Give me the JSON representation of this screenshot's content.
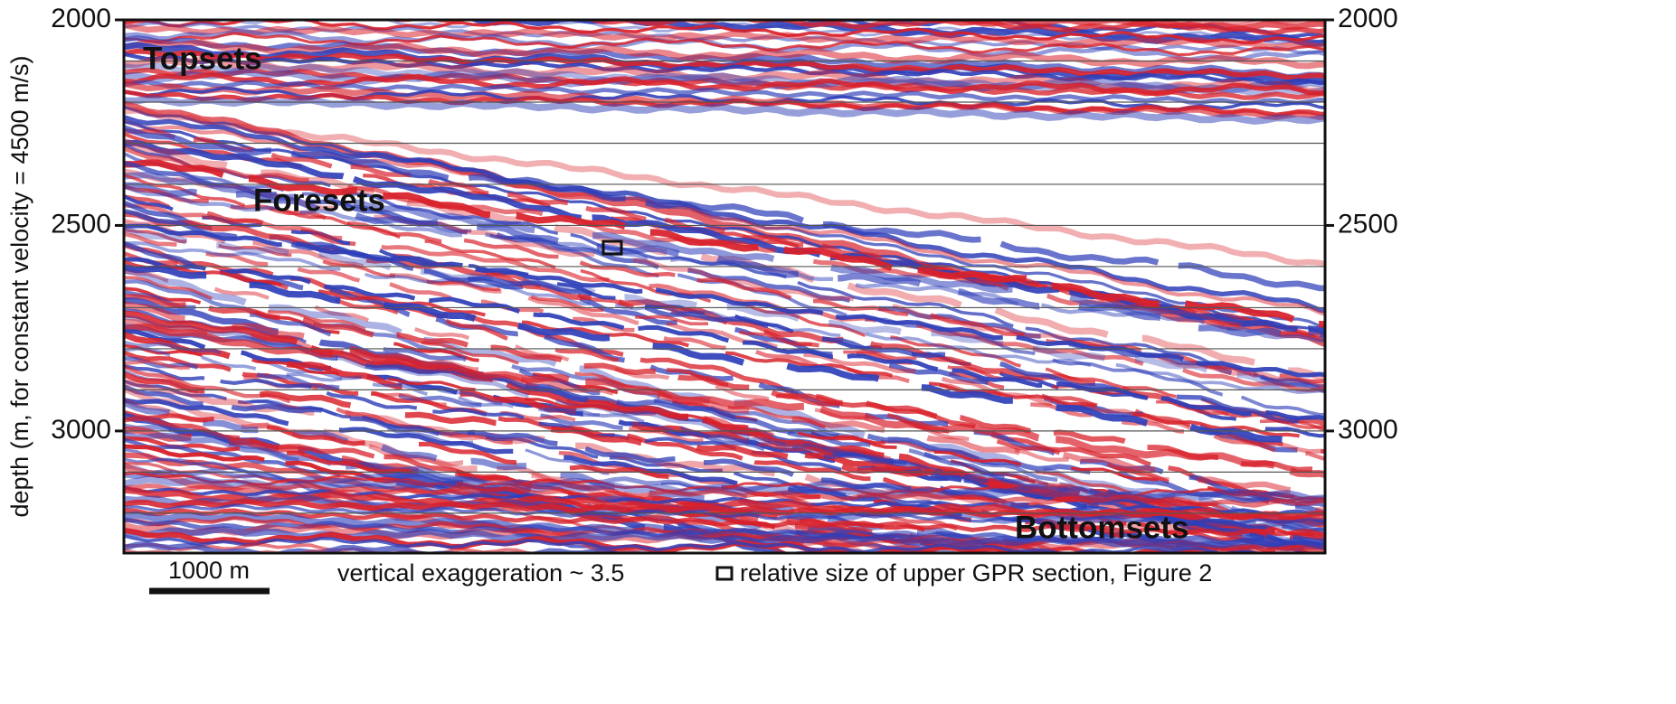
{
  "chart_data": {
    "type": "seismic-section",
    "ylabel": "depth (m, for constant velocity = 4500 m/s)",
    "ylim": [
      2000,
      3297
    ],
    "yticks": [
      2000,
      2500,
      3000
    ],
    "minor_yticks": [
      2100,
      2200,
      2300,
      2400,
      2600,
      2700,
      2800,
      2900,
      3100,
      3200
    ],
    "annotations": [
      "Topsets",
      "Foresets",
      "Bottomsets"
    ],
    "scale_bar": "1000 m",
    "note": "vertical exaggeration ~ 3.5",
    "legend": "relative size of upper GPR section, Figure 2"
  }
}
